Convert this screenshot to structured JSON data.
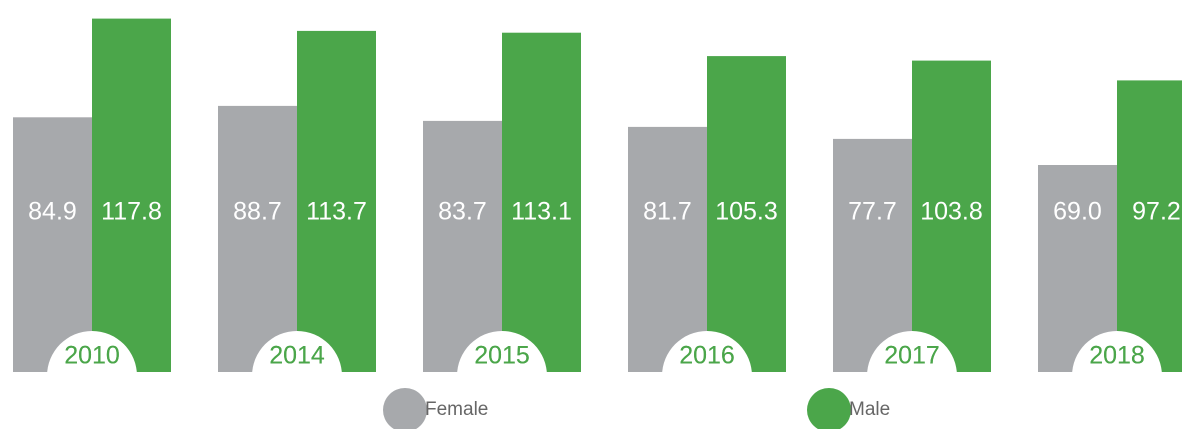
{
  "chart_data": {
    "type": "bar",
    "categories": [
      "2010",
      "2014",
      "2015",
      "2016",
      "2017",
      "2018"
    ],
    "series": [
      {
        "name": "Female",
        "color": "#a7a9ac",
        "values": [
          84.9,
          88.7,
          83.7,
          81.7,
          77.7,
          69.0
        ],
        "value_labels": [
          "84.9",
          "88.7",
          "83.7",
          "81.7",
          "77.7",
          "69.0"
        ]
      },
      {
        "name": "Male",
        "color": "#4ba64a",
        "values": [
          117.8,
          113.7,
          113.1,
          105.3,
          103.8,
          97.2
        ],
        "value_labels": [
          "117.8",
          "113.7",
          "113.1",
          "105.3",
          "103.8",
          "97.2"
        ]
      }
    ],
    "legend": "bottom"
  }
}
